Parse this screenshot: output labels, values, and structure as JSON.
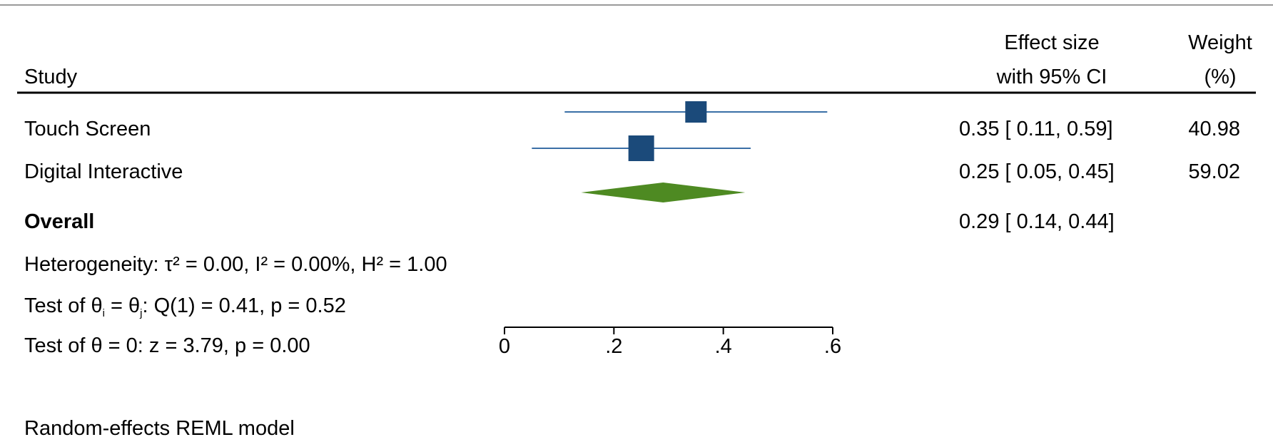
{
  "chart_data": {
    "type": "forest",
    "columns": {
      "study": "Study",
      "effect_line1": "Effect size",
      "effect_line2": "with 95% CI",
      "weight_line1": "Weight",
      "weight_line2": "(%)"
    },
    "studies": [
      {
        "label": "Touch Screen",
        "effect": 0.35,
        "ci": [
          0.11,
          0.59
        ],
        "effect_text": "0.35 [ 0.11,  0.59]",
        "weight": 40.98,
        "weight_text": "40.98"
      },
      {
        "label": "Digital Interactive",
        "effect": 0.25,
        "ci": [
          0.05,
          0.45
        ],
        "effect_text": "0.25 [ 0.05,  0.45]",
        "weight": 59.02,
        "weight_text": "59.02"
      }
    ],
    "overall": {
      "label": "Overall",
      "effect": 0.29,
      "ci": [
        0.14,
        0.44
      ],
      "effect_text": "0.29 [ 0.14,  0.44]"
    },
    "stats": {
      "heterogeneity": "Heterogeneity: τ² = 0.00, I² = 0.00%, H² = 1.00",
      "test_q_prefix": "Test of θ",
      "test_q_i": "i",
      "test_q_eq": " = θ",
      "test_q_j": "j",
      "test_q_rest": ": Q(1) = 0.41, p = 0.52",
      "test_z": "Test of θ = 0: z = 3.79, p = 0.00"
    },
    "xaxis": {
      "range": [
        0,
        0.6
      ],
      "ticks": [
        0,
        0.2,
        0.4,
        0.6
      ],
      "tick_labels": [
        "0",
        ".2",
        ".4",
        ".6"
      ]
    },
    "footnote": "Random-effects REML model",
    "colors": {
      "marker": "#1b4a7a",
      "ci_line": "#3a6fa6",
      "diamond": "#4e8a22"
    }
  }
}
